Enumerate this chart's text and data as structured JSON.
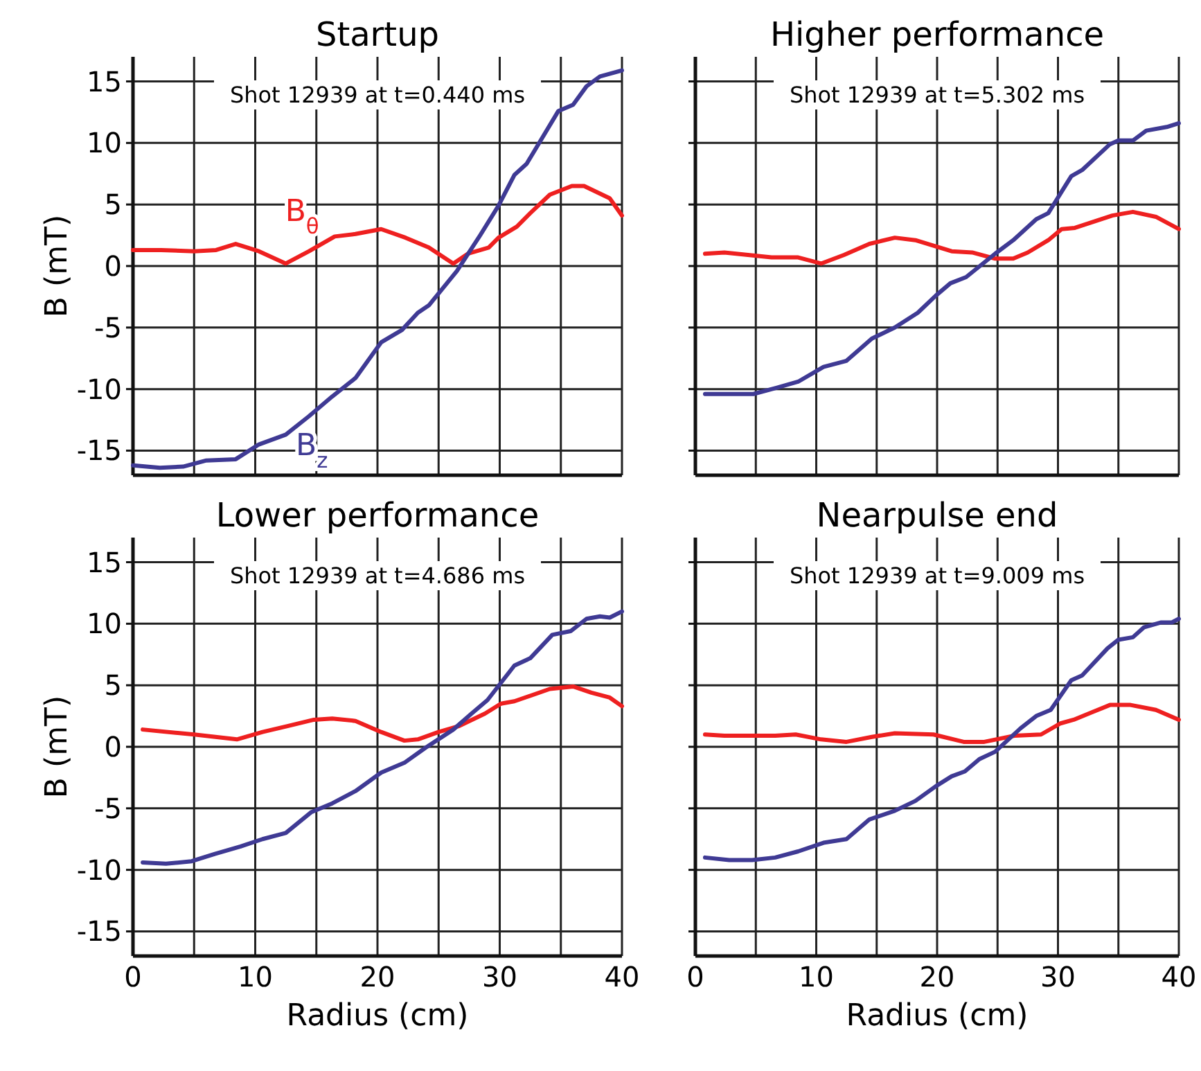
{
  "chart_data": [
    {
      "type": "line",
      "title": "Startup",
      "ylabel": "B (mT)",
      "annotations": [
        "Shot 12939 at t=0.440 ms"
      ],
      "xlim": [
        0,
        40
      ],
      "ylim": [
        -17,
        17
      ],
      "xticks": [
        0,
        {
          "value": 5,
          "label": null
        },
        10,
        {
          "value": 15,
          "label": null
        },
        20,
        {
          "value": 25,
          "label": null
        },
        30,
        {
          "value": 35,
          "label": null
        },
        40
      ],
      "yticks": [
        -15,
        -10,
        -5,
        0,
        5,
        10,
        15
      ],
      "grid": true,
      "tick_labels": "y",
      "series": [
        {
          "name": "B$_{θ}$",
          "color": "#ee2020",
          "x": [
            0,
            2.3,
            5,
            6.8,
            8.4,
            10.3,
            12.5,
            14.4,
            16.5,
            18.2,
            20.3,
            22.3,
            24.2,
            26.2,
            27.4,
            29.1,
            29.9,
            31.4,
            32.5,
            34.1,
            35.9,
            36.9,
            39,
            40
          ],
          "values": [
            1.3,
            1.3,
            1.2,
            1.3,
            1.8,
            1.2,
            0.2,
            1.2,
            2.4,
            2.6,
            3.0,
            2.3,
            1.5,
            0.2,
            1.0,
            1.5,
            2.3,
            3.2,
            4.3,
            5.8,
            6.5,
            6.5,
            5.5,
            4.1
          ]
        },
        {
          "name": "B$_{z}$",
          "color": "#3f3a94",
          "x": [
            0,
            2.2,
            4.1,
            6,
            8.4,
            10.3,
            12.5,
            14.4,
            16.3,
            18.2,
            20.3,
            22,
            23.3,
            24.2,
            26.5,
            28.4,
            29.9,
            31.2,
            32.2,
            34.8,
            36,
            37.1,
            38.2,
            40
          ],
          "values": [
            -16.2,
            -16.4,
            -16.3,
            -15.8,
            -15.7,
            -14.5,
            -13.7,
            -12.2,
            -10.6,
            -9.1,
            -6.2,
            -5.2,
            -3.8,
            -3.2,
            -0.4,
            2.5,
            4.9,
            7.4,
            8.3,
            12.6,
            13.1,
            14.6,
            15.4,
            15.9
          ]
        }
      ]
    },
    {
      "type": "line",
      "title": "Higher performance",
      "annotations": [
        "Shot 12939 at t=5.302 ms"
      ],
      "xlim": [
        0,
        40
      ],
      "ylim": [
        -17,
        17
      ],
      "xticks": [
        0,
        {
          "value": 5,
          "label": null
        },
        10,
        {
          "value": 15,
          "label": null
        },
        20,
        {
          "value": 25,
          "label": null
        },
        30,
        {
          "value": 35,
          "label": null
        },
        40
      ],
      "yticks": [
        -15,
        -10,
        -5,
        0,
        5,
        10,
        15
      ],
      "grid": true,
      "tick_labels": false,
      "series": [
        {
          "color": "#ee2020",
          "x": [
            0.8,
            2.4,
            6.3,
            8.5,
            10.4,
            12.3,
            14.4,
            16.5,
            18.2,
            21.2,
            22.9,
            24.8,
            26.3,
            27.5,
            29.2,
            30.3,
            31.4,
            34.5,
            36.2,
            38.1,
            40
          ],
          "values": [
            1.0,
            1.1,
            0.7,
            0.7,
            0.2,
            0.9,
            1.8,
            2.3,
            2.1,
            1.2,
            1.1,
            0.6,
            0.6,
            1.1,
            2.1,
            3.0,
            3.1,
            4.1,
            4.4,
            4.0,
            3.0
          ]
        },
        {
          "color": "#3f3a94",
          "x": [
            0.8,
            4.8,
            6.7,
            8.5,
            10.6,
            12.5,
            14.6,
            16.5,
            18.4,
            19.9,
            21.1,
            22.4,
            24.8,
            26.3,
            28.2,
            29.2,
            31.1,
            32,
            34.3,
            35,
            36.2,
            37.3,
            39,
            40
          ],
          "values": [
            -10.4,
            -10.4,
            -9.9,
            -9.4,
            -8.2,
            -7.7,
            -5.9,
            -5.0,
            -3.8,
            -2.4,
            -1.4,
            -0.9,
            1.0,
            2.1,
            3.8,
            4.3,
            7.3,
            7.8,
            9.9,
            10.2,
            10.2,
            11.0,
            11.3,
            11.6
          ]
        }
      ]
    },
    {
      "type": "line",
      "title": "Lower performance",
      "xlabel": "Radius (cm)",
      "ylabel": "B (mT)",
      "annotations": [
        "Shot 12939 at t=4.686 ms"
      ],
      "xlim": [
        0,
        40
      ],
      "ylim": [
        -17,
        17
      ],
      "xticks": [
        0,
        {
          "value": 5,
          "label": null
        },
        10,
        {
          "value": 15,
          "label": null
        },
        20,
        {
          "value": 25,
          "label": null
        },
        30,
        {
          "value": 35,
          "label": null
        },
        40
      ],
      "yticks": [
        -15,
        -10,
        -5,
        0,
        5,
        10,
        15
      ],
      "grid": true,
      "series": [
        {
          "color": "#ee2020",
          "x": [
            0.8,
            5,
            8.5,
            10.6,
            12.7,
            14.8,
            16.3,
            18.2,
            20.3,
            22.2,
            23.3,
            25,
            26.7,
            28.8,
            30.1,
            31.2,
            34.1,
            36,
            37.5,
            39,
            40
          ],
          "values": [
            1.4,
            1.0,
            0.6,
            1.2,
            1.7,
            2.2,
            2.3,
            2.1,
            1.2,
            0.5,
            0.6,
            1.2,
            1.7,
            2.7,
            3.5,
            3.7,
            4.7,
            4.9,
            4.4,
            4.0,
            3.3
          ]
        },
        {
          "color": "#3f3a94",
          "x": [
            0.8,
            2.7,
            4.8,
            6.7,
            8.8,
            10.6,
            12.5,
            14.6,
            16.3,
            18.2,
            20.3,
            22.2,
            23.9,
            26.2,
            27.7,
            29,
            31.2,
            32.5,
            34.3,
            35.8,
            37.1,
            38.2,
            39,
            40
          ],
          "values": [
            -9.4,
            -9.5,
            -9.3,
            -8.7,
            -8.1,
            -7.5,
            -7.0,
            -5.3,
            -4.6,
            -3.6,
            -2.1,
            -1.3,
            -0.1,
            1.4,
            2.7,
            3.8,
            6.6,
            7.2,
            9.1,
            9.4,
            10.4,
            10.6,
            10.5,
            11.0
          ]
        }
      ]
    },
    {
      "type": "line",
      "title": "Nearpulse end",
      "xlabel": "Radius (cm)",
      "annotations": [
        "Shot 12939 at t=9.009 ms"
      ],
      "xlim": [
        0,
        40
      ],
      "ylim": [
        -17,
        17
      ],
      "xticks": [
        0,
        {
          "value": 5,
          "label": null
        },
        10,
        {
          "value": 15,
          "label": null
        },
        20,
        {
          "value": 25,
          "label": null
        },
        30,
        {
          "value": 35,
          "label": null
        },
        40
      ],
      "yticks": [
        -15,
        -10,
        -5,
        0,
        5,
        10,
        15
      ],
      "grid": true,
      "tick_labels": "x",
      "series": [
        {
          "color": "#ee2020",
          "x": [
            0.8,
            2.4,
            6.6,
            8.3,
            10.4,
            12.5,
            14.6,
            16.5,
            19.7,
            22.2,
            23.9,
            26.4,
            28.6,
            30.2,
            31.3,
            32.8,
            34.3,
            36,
            38.1,
            40
          ],
          "values": [
            1.0,
            0.9,
            0.9,
            1.0,
            0.6,
            0.4,
            0.8,
            1.1,
            1.0,
            0.4,
            0.4,
            0.9,
            1.0,
            1.9,
            2.2,
            2.8,
            3.4,
            3.4,
            3.0,
            2.2
          ]
        },
        {
          "color": "#3f3a94",
          "x": [
            0.8,
            2.8,
            4.7,
            6.6,
            8.5,
            10.6,
            12.5,
            14.4,
            16.5,
            18.2,
            19.9,
            21.2,
            22.3,
            23.5,
            24.8,
            26.9,
            28.2,
            29.4,
            31.1,
            32,
            34.1,
            35,
            36.2,
            37.1,
            38.5,
            39.4,
            40
          ],
          "values": [
            -9.0,
            -9.2,
            -9.2,
            -9.0,
            -8.5,
            -7.8,
            -7.5,
            -5.9,
            -5.2,
            -4.4,
            -3.2,
            -2.4,
            -2.0,
            -1.0,
            -0.4,
            1.5,
            2.5,
            3.0,
            5.4,
            5.8,
            8.0,
            8.7,
            8.9,
            9.7,
            10.1,
            10.1,
            10.4
          ]
        }
      ]
    }
  ]
}
